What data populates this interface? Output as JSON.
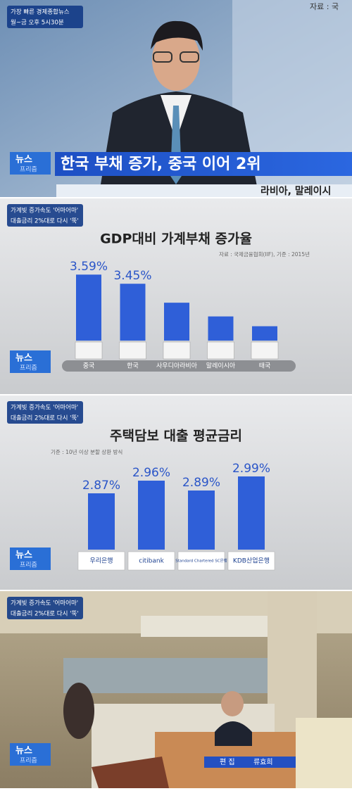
{
  "frames": [
    {
      "promo": [
        "가장 빠른 경제종합뉴스",
        "월~금 오후 5시30분"
      ],
      "source_fragment": "자료 : 국",
      "logo": [
        "뉴스",
        "프리즘"
      ],
      "headline": "한국 부채 증가, 중국 이어 2위",
      "background_text": "라비아, 말레이시"
    },
    {
      "promo": [
        "가계빚 증가속도 '어마어마'",
        "대출금리 2%대로 다시 '뚝'"
      ],
      "logo": [
        "뉴스",
        "프리즘"
      ]
    },
    {
      "promo": [
        "가계빚 증가속도 '어마어마'",
        "대출금리 2%대로 다시 '뚝'"
      ],
      "logo": [
        "뉴스",
        "프리즘"
      ]
    },
    {
      "promo": [
        "가계빚 증가속도 '어마어마'",
        "대출금리 2%대로 다시 '뚝'"
      ],
      "logo": [
        "뉴스",
        "프리즘"
      ],
      "credit": {
        "role": "편 집",
        "name": "류효희"
      }
    }
  ],
  "chart_data": [
    {
      "type": "bar",
      "title": "GDP대비 가계부채 증가율",
      "note": "자료 : 국제금융협회(IIF), 기준 : 2015년",
      "categories": [
        "중국",
        "한국",
        "사우디아라비아",
        "말레이시아",
        "태국"
      ],
      "values": [
        3.59,
        3.45,
        3.16,
        2.95,
        2.8
      ],
      "value_labels": [
        "3.59%",
        "3.45%",
        null,
        null,
        null
      ],
      "ylim": [
        2.58,
        3.7
      ],
      "color": "#2f5fd8"
    },
    {
      "type": "bar",
      "title": "주택담보 대출 평균금리",
      "note": "기준 : 10년 이상 분할 상환 방식",
      "categories": [
        "우리은행",
        "citibank",
        "Standard Chartered SC은행",
        "KDB산업은행"
      ],
      "values": [
        2.87,
        2.96,
        2.89,
        2.99
      ],
      "value_labels": [
        "2.87%",
        "2.96%",
        "2.89%",
        "2.99%"
      ],
      "ylim": [
        2.47,
        3.05
      ],
      "color": "#2f5fd8"
    }
  ]
}
